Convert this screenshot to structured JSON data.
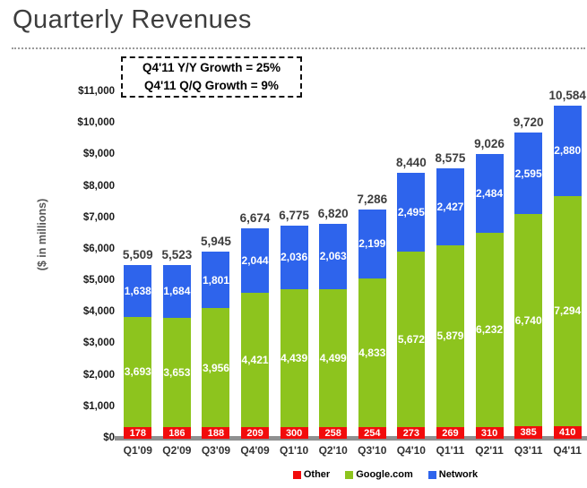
{
  "page": {
    "title": "Quarterly Revenues"
  },
  "annotation": {
    "line1": "Q4'11 Y/Y Growth = 25%",
    "line2": "Q4'11 Q/Q Growth = 9%"
  },
  "chart_data": {
    "type": "bar",
    "stacked": true,
    "title": "Quarterly Revenues",
    "ylabel": "($ in millions)",
    "ylim": [
      0,
      11000
    ],
    "ytick_step": 1000,
    "ytick_labels": [
      "$0",
      "$1,000",
      "$2,000",
      "$3,000",
      "$4,000",
      "$5,000",
      "$6,000",
      "$7,000",
      "$8,000",
      "$9,000",
      "$10,000",
      "$11,000"
    ],
    "grid": false,
    "legend_position": "bottom",
    "categories": [
      "Q1'09",
      "Q2'09",
      "Q3'09",
      "Q4'09",
      "Q1'10",
      "Q2'10",
      "Q3'10",
      "Q4'10",
      "Q1'11",
      "Q2'11",
      "Q3'11",
      "Q4'11"
    ],
    "series": [
      {
        "name": "Other",
        "color": "#f20c0c",
        "values": [
          178,
          186,
          188,
          209,
          300,
          258,
          254,
          273,
          269,
          310,
          385,
          410
        ]
      },
      {
        "name": "Google.com",
        "color": "#8dc41e",
        "values": [
          3693,
          3653,
          3956,
          4421,
          4439,
          4499,
          4833,
          5672,
          5879,
          6232,
          6740,
          7294
        ]
      },
      {
        "name": "Network",
        "color": "#2e64ec",
        "values": [
          1638,
          1684,
          1801,
          2044,
          2036,
          2063,
          2199,
          2495,
          2427,
          2484,
          2595,
          2880
        ]
      }
    ],
    "totals": [
      "5,509",
      "5,523",
      "5,945",
      "6,674",
      "6,775",
      "6,820",
      "7,286",
      "8,440",
      "8,575",
      "9,026",
      "9,720",
      "10,584"
    ],
    "colors": {
      "axis_line": "#909090",
      "total_label": "#3d3d3d",
      "segment_label": "#ffffff"
    }
  }
}
